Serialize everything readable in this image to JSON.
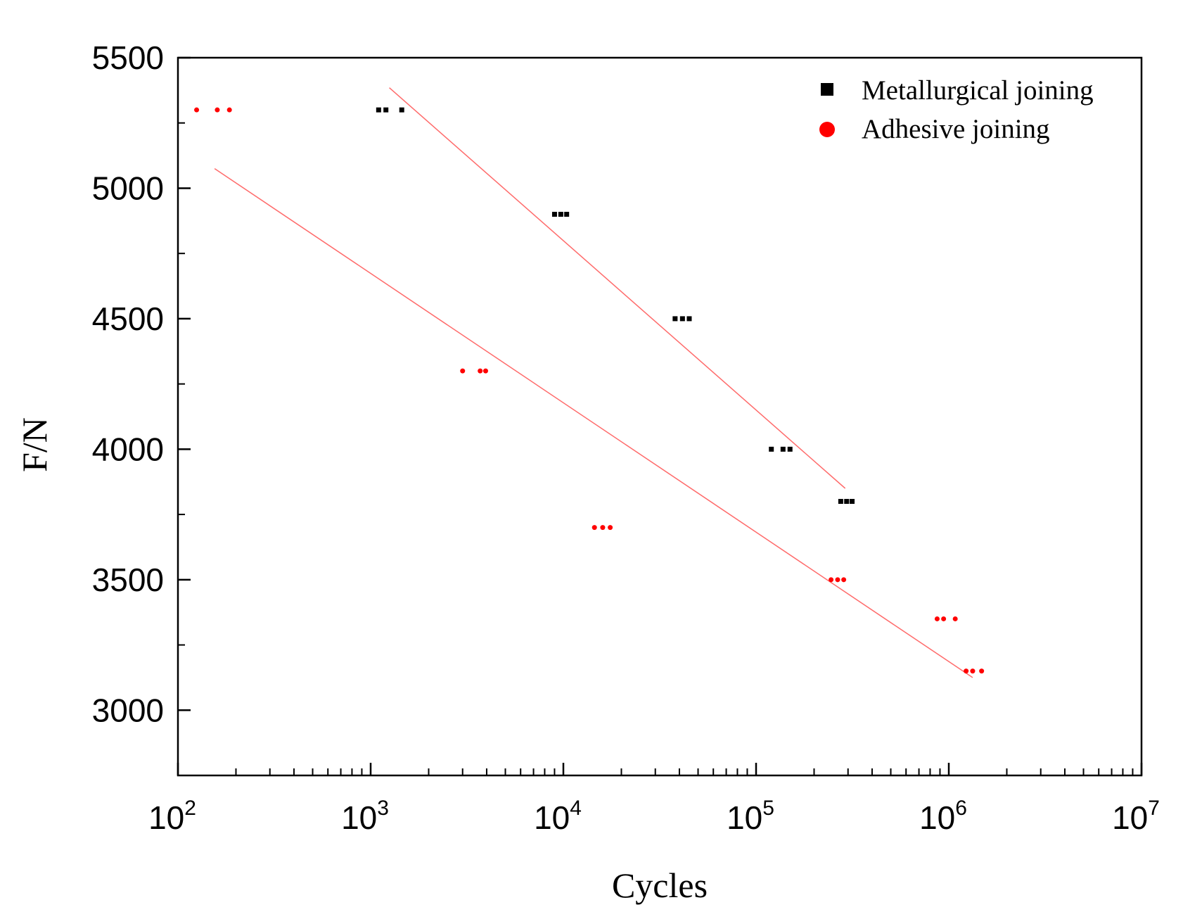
{
  "chart_data": {
    "type": "scatter",
    "xscale": "log",
    "xlabel": "Cycles",
    "ylabel": "F/N",
    "xlim": [
      100,
      10000000
    ],
    "ylim": [
      2750,
      5500
    ],
    "yticks": [
      3000,
      3500,
      4000,
      4500,
      5000,
      5500
    ],
    "xticks": [
      {
        "value": 100,
        "base": "10",
        "exp": "2"
      },
      {
        "value": 1000,
        "base": "10",
        "exp": "3"
      },
      {
        "value": 10000,
        "base": "10",
        "exp": "4"
      },
      {
        "value": 100000,
        "base": "10",
        "exp": "5"
      },
      {
        "value": 1000000,
        "base": "10",
        "exp": "6"
      },
      {
        "value": 10000000,
        "base": "10",
        "exp": "7"
      }
    ],
    "legend_position": "top-right",
    "series": [
      {
        "name": "Metallurgical joining",
        "marker": "square",
        "color": "#000000",
        "points": [
          [
            1100,
            5300
          ],
          [
            1200,
            5300
          ],
          [
            1450,
            5300
          ],
          [
            9000,
            4900
          ],
          [
            9700,
            4900
          ],
          [
            10400,
            4900
          ],
          [
            38000,
            4500
          ],
          [
            41500,
            4500
          ],
          [
            45000,
            4500
          ],
          [
            120000,
            4000
          ],
          [
            138000,
            4000
          ],
          [
            150000,
            4000
          ],
          [
            275000,
            3800
          ],
          [
            295000,
            3800
          ],
          [
            315000,
            3800
          ]
        ],
        "fit": {
          "color": "#ff6b6b",
          "from": [
            1250,
            5385
          ],
          "to": [
            290000,
            3850
          ]
        }
      },
      {
        "name": "Adhesive joining",
        "marker": "circle",
        "color": "#ff0000",
        "points": [
          [
            125,
            5300
          ],
          [
            160,
            5300
          ],
          [
            185,
            5300
          ],
          [
            3000,
            4300
          ],
          [
            3700,
            4300
          ],
          [
            3950,
            4300
          ],
          [
            14500,
            3700
          ],
          [
            16000,
            3700
          ],
          [
            17500,
            3700
          ],
          [
            245000,
            3500
          ],
          [
            265000,
            3500
          ],
          [
            285000,
            3500
          ],
          [
            870000,
            3350
          ],
          [
            940000,
            3350
          ],
          [
            1080000,
            3350
          ],
          [
            1230000,
            3150
          ],
          [
            1330000,
            3150
          ],
          [
            1480000,
            3150
          ]
        ],
        "fit": {
          "color": "#ff6b6b",
          "from": [
            155,
            5075
          ],
          "to": [
            1330000,
            3125
          ]
        }
      }
    ]
  }
}
